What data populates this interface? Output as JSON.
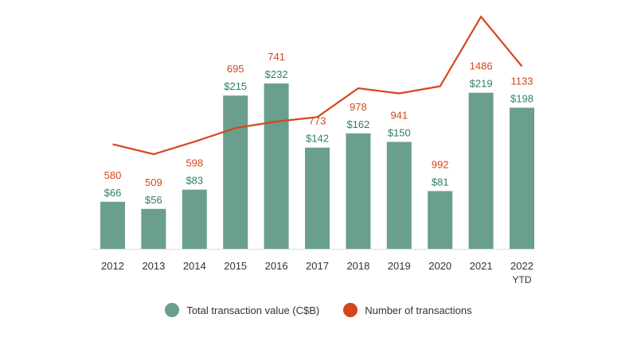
{
  "chart_data": {
    "type": "bar",
    "title": "",
    "xlabel": "",
    "ylabel": "",
    "categories": [
      "2012",
      "2013",
      "2014",
      "2015",
      "2016",
      "2017",
      "2018",
      "2019",
      "2020",
      "2021",
      "2022"
    ],
    "category_sublabels": [
      "",
      "",
      "",
      "",
      "",
      "",
      "",
      "",
      "",
      "",
      "YTD"
    ],
    "series": [
      {
        "name": "Total transaction value (C$B)",
        "type": "bar",
        "color": "#6a9e8e",
        "label_color": "#2e7f67",
        "values": [
          66,
          56,
          83,
          215,
          232,
          142,
          162,
          150,
          81,
          219,
          198
        ],
        "labels": [
          "$66",
          "$56",
          "$83",
          "$215",
          "$232",
          "$142",
          "$162",
          "$150",
          "$81",
          "$219",
          "$198"
        ]
      },
      {
        "name": "Number of transactions",
        "type": "line",
        "color": "#d4471b",
        "values": [
          580,
          509,
          598,
          695,
          741,
          773,
          978,
          941,
          992,
          1486,
          1133
        ],
        "labels": [
          "580",
          "509",
          "598",
          "695",
          "741",
          "773",
          "978",
          "941",
          "992",
          "1486",
          "1133"
        ]
      }
    ],
    "legend": "bottom",
    "grid": false
  }
}
